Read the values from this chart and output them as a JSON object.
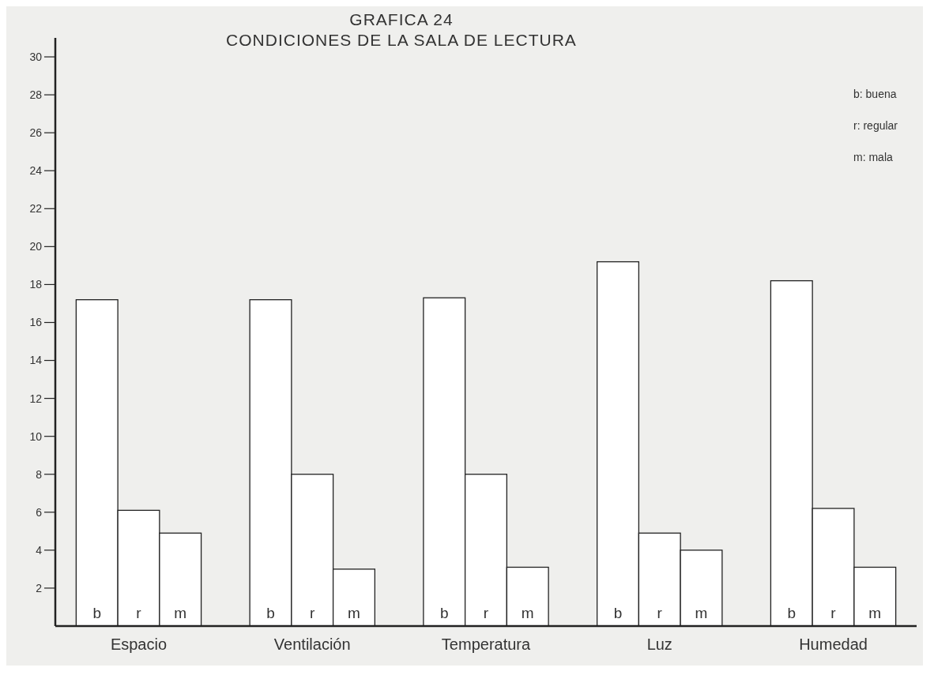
{
  "chart_data": {
    "type": "bar",
    "title": "GRAFICA 24",
    "subtitle": "CONDICIONES DE LA SALA DE LECTURA",
    "categories": [
      "Espacio",
      "Ventilación",
      "Temperatura",
      "Luz",
      "Humedad"
    ],
    "series": [
      {
        "name": "b",
        "color": "#ffffff",
        "values": [
          17.2,
          17.2,
          17.3,
          19.2,
          18.2
        ]
      },
      {
        "name": "r",
        "color": "#ffffff",
        "values": [
          6.1,
          8.0,
          8.0,
          4.9,
          6.2
        ]
      },
      {
        "name": "m",
        "color": "#ffffff",
        "values": [
          4.9,
          3.0,
          3.1,
          4.0,
          3.1
        ]
      }
    ],
    "ylim": [
      0,
      31
    ],
    "yticks": [
      2,
      4,
      6,
      8,
      10,
      12,
      14,
      16,
      18,
      20,
      22,
      24,
      26,
      28,
      30
    ],
    "annotations": [
      "b: buena",
      "r: regular",
      "m: mala"
    ],
    "grid": false
  }
}
